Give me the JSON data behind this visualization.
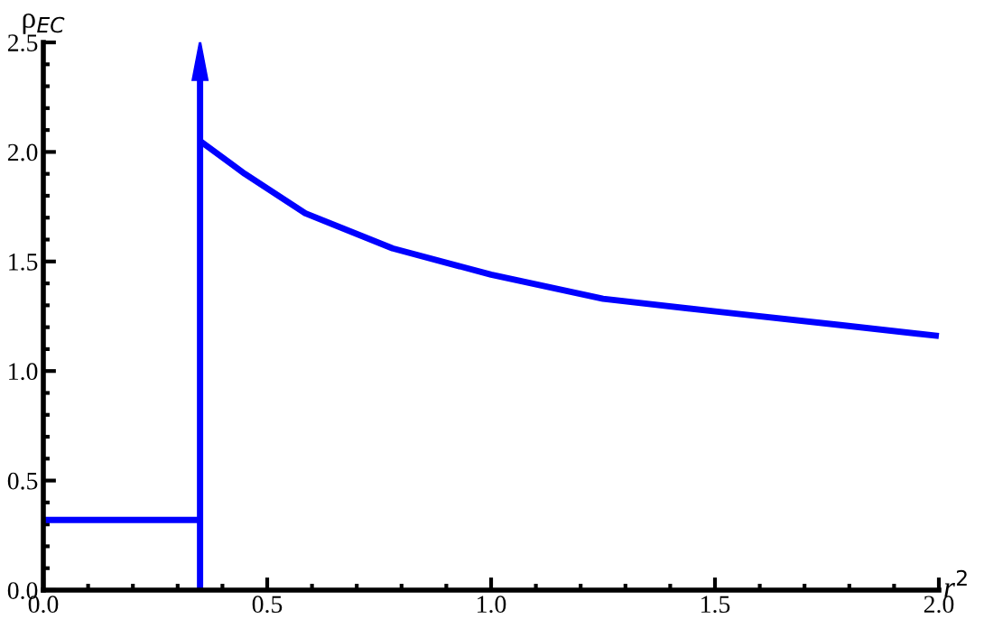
{
  "chart_data": {
    "type": "line",
    "xlabel": "r$^{2}$",
    "ylabel": "ρ$_{EC}$",
    "xlim": [
      0,
      2.0
    ],
    "ylim": [
      0,
      2.5
    ],
    "xticks": [
      {
        "value": 0,
        "label": "0.0"
      },
      0.5,
      {
        "value": 1,
        "label": "1.0"
      },
      1.5,
      {
        "value": 2,
        "label": "2.0"
      }
    ],
    "yticks": [
      {
        "value": 0,
        "label": "0.0"
      },
      0.5,
      {
        "value": 1,
        "label": "1.0"
      },
      1.5,
      {
        "value": 2,
        "label": "2.0"
      },
      2.5
    ],
    "grid": false,
    "series": [
      {
        "color": "#0000ff",
        "x": [
          0,
          0.35
        ],
        "values": [
          0.32,
          0.32
        ]
      },
      {
        "color": "#0000ff",
        "x": [
          0.35,
          0.45,
          0.585,
          0.78,
          1.0,
          1.25,
          1.51,
          1.78,
          2.0
        ],
        "values": [
          2.05,
          1.9,
          1.72,
          1.56,
          1.44,
          1.33,
          1.27,
          1.21,
          1.16
        ]
      }
    ],
    "ref_lines": [
      {
        "axis": "x",
        "value": 0.35,
        "color": "#0000ff",
        "line_style": "solid"
      }
    ]
  }
}
